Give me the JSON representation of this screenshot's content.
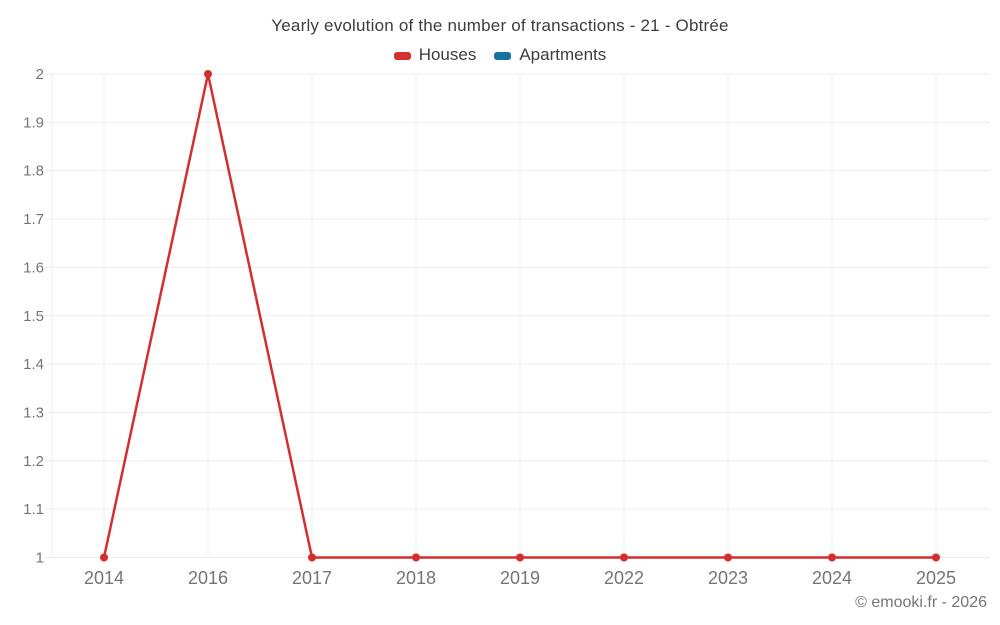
{
  "header": {
    "title": "Yearly evolution of the number of transactions - 21 - Obtrée"
  },
  "legend": {
    "items": [
      {
        "label": "Houses",
        "color": "#d32f2f"
      },
      {
        "label": "Apartments",
        "color": "#1572a1"
      }
    ]
  },
  "footer": {
    "credit": "© emooki.fr - 2026"
  },
  "chart_data": {
    "type": "line",
    "title": "Yearly evolution of the number of transactions - 21 - Obtrée",
    "categories": [
      "2014",
      "2016",
      "2017",
      "2018",
      "2019",
      "2022",
      "2023",
      "2024",
      "2025"
    ],
    "series": [
      {
        "name": "Houses",
        "color": "#d32f2f",
        "values": [
          1,
          2,
          1,
          1,
          1,
          1,
          1,
          1,
          1
        ]
      },
      {
        "name": "Apartments",
        "color": "#1572a1",
        "values": []
      }
    ],
    "xlabel": "",
    "ylabel": "",
    "ylim": [
      1,
      2
    ],
    "y_tick_labels": [
      "1",
      "1.1",
      "1.2",
      "1.3",
      "1.4",
      "1.5",
      "1.6",
      "1.7",
      "1.8",
      "1.9",
      "2"
    ],
    "grid": true,
    "legend_position": "top",
    "grid_color": "#ececec",
    "axis_label_color": "#757575",
    "marker_radius": 4,
    "line_width": 2.5
  }
}
